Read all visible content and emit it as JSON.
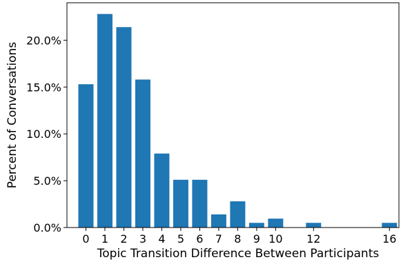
{
  "chart_data": {
    "type": "bar",
    "x": [
      0,
      1,
      2,
      3,
      4,
      5,
      6,
      7,
      8,
      9,
      10,
      12,
      16
    ],
    "values": [
      15.3,
      22.8,
      21.4,
      15.8,
      7.9,
      5.1,
      5.1,
      1.4,
      2.8,
      0.5,
      0.95,
      0.5,
      0.5
    ],
    "xticks": [
      "0",
      "1",
      "2",
      "3",
      "4",
      "5",
      "6",
      "7",
      "8",
      "9",
      "10",
      "12",
      "16"
    ],
    "yticks": [
      "0.0%",
      "5.0%",
      "10.0%",
      "15.0%",
      "20.0%"
    ],
    "ytick_values": [
      0,
      5,
      10,
      15,
      20
    ],
    "xlabel": "Topic Transition Difference Between Participants",
    "ylabel": "Percent of Conversations",
    "xlim": [
      -1,
      16.5
    ],
    "ylim": [
      0,
      24
    ],
    "bar_color": "#1f77b4",
    "grid": false,
    "legend": "none"
  }
}
